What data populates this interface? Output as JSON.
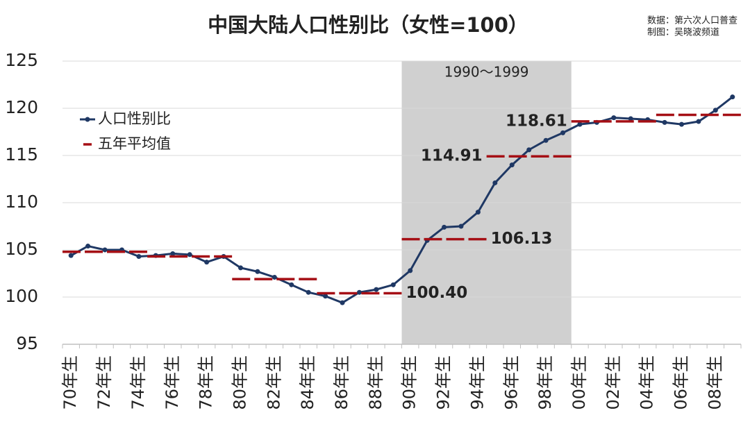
{
  "chart_data": {
    "type": "line",
    "title": "中国大陆人口性别比（女性=100）",
    "source": "数据：第六次人口普查",
    "credit": "制图：吴晓波频道",
    "highlight_label": "1990～1999",
    "categories": [
      "70年生",
      null,
      "72年生",
      null,
      "74年生",
      null,
      "76年生",
      null,
      "78年生",
      null,
      "80年生",
      null,
      "82年生",
      null,
      "84年生",
      null,
      "86年生",
      null,
      "88年生",
      null,
      "90年生",
      null,
      "92年生",
      null,
      "94年生",
      null,
      "96年生",
      null,
      "98年生",
      null,
      "00年生",
      null,
      "02年生",
      null,
      "04年生",
      null,
      "06年生",
      null,
      "08年生",
      null
    ],
    "series": [
      {
        "name": "人口性别比",
        "color": "#1f3864",
        "values": [
          104.4,
          105.4,
          105.0,
          105.0,
          104.3,
          104.4,
          104.6,
          104.5,
          103.7,
          104.3,
          103.1,
          102.7,
          102.1,
          101.3,
          100.5,
          100.1,
          99.4,
          100.5,
          100.8,
          101.3,
          102.8,
          106.0,
          107.4,
          107.5,
          109.0,
          112.1,
          114.0,
          115.6,
          116.6,
          117.4,
          118.3,
          118.5,
          119.0,
          118.9,
          118.8,
          118.5,
          118.3,
          118.6,
          119.8,
          121.2
        ]
      },
      {
        "name": "五年平均值",
        "color": "#a50f15",
        "values": [
          null,
          null,
          104.8,
          null,
          null,
          null,
          null,
          104.3,
          null,
          null,
          null,
          null,
          101.9,
          null,
          null,
          null,
          null,
          100.4,
          null,
          null,
          null,
          null,
          106.13,
          null,
          null,
          null,
          null,
          114.91,
          null,
          null,
          null,
          null,
          118.61,
          null,
          null,
          null,
          null,
          119.3,
          null,
          null
        ],
        "value_labels": [
          null,
          null,
          null,
          null,
          null,
          null,
          null,
          null,
          null,
          null,
          null,
          null,
          null,
          null,
          null,
          null,
          null,
          "100.40",
          null,
          null,
          null,
          null,
          "106.13",
          null,
          null,
          null,
          null,
          "114.91",
          null,
          null,
          null,
          null,
          "118.61",
          null,
          null,
          null,
          null,
          null,
          null,
          null
        ]
      }
    ],
    "ylim": [
      95,
      125
    ],
    "yticks": [
      95,
      100,
      105,
      110,
      115,
      120,
      125
    ],
    "grid": true,
    "legend": "upper left"
  }
}
